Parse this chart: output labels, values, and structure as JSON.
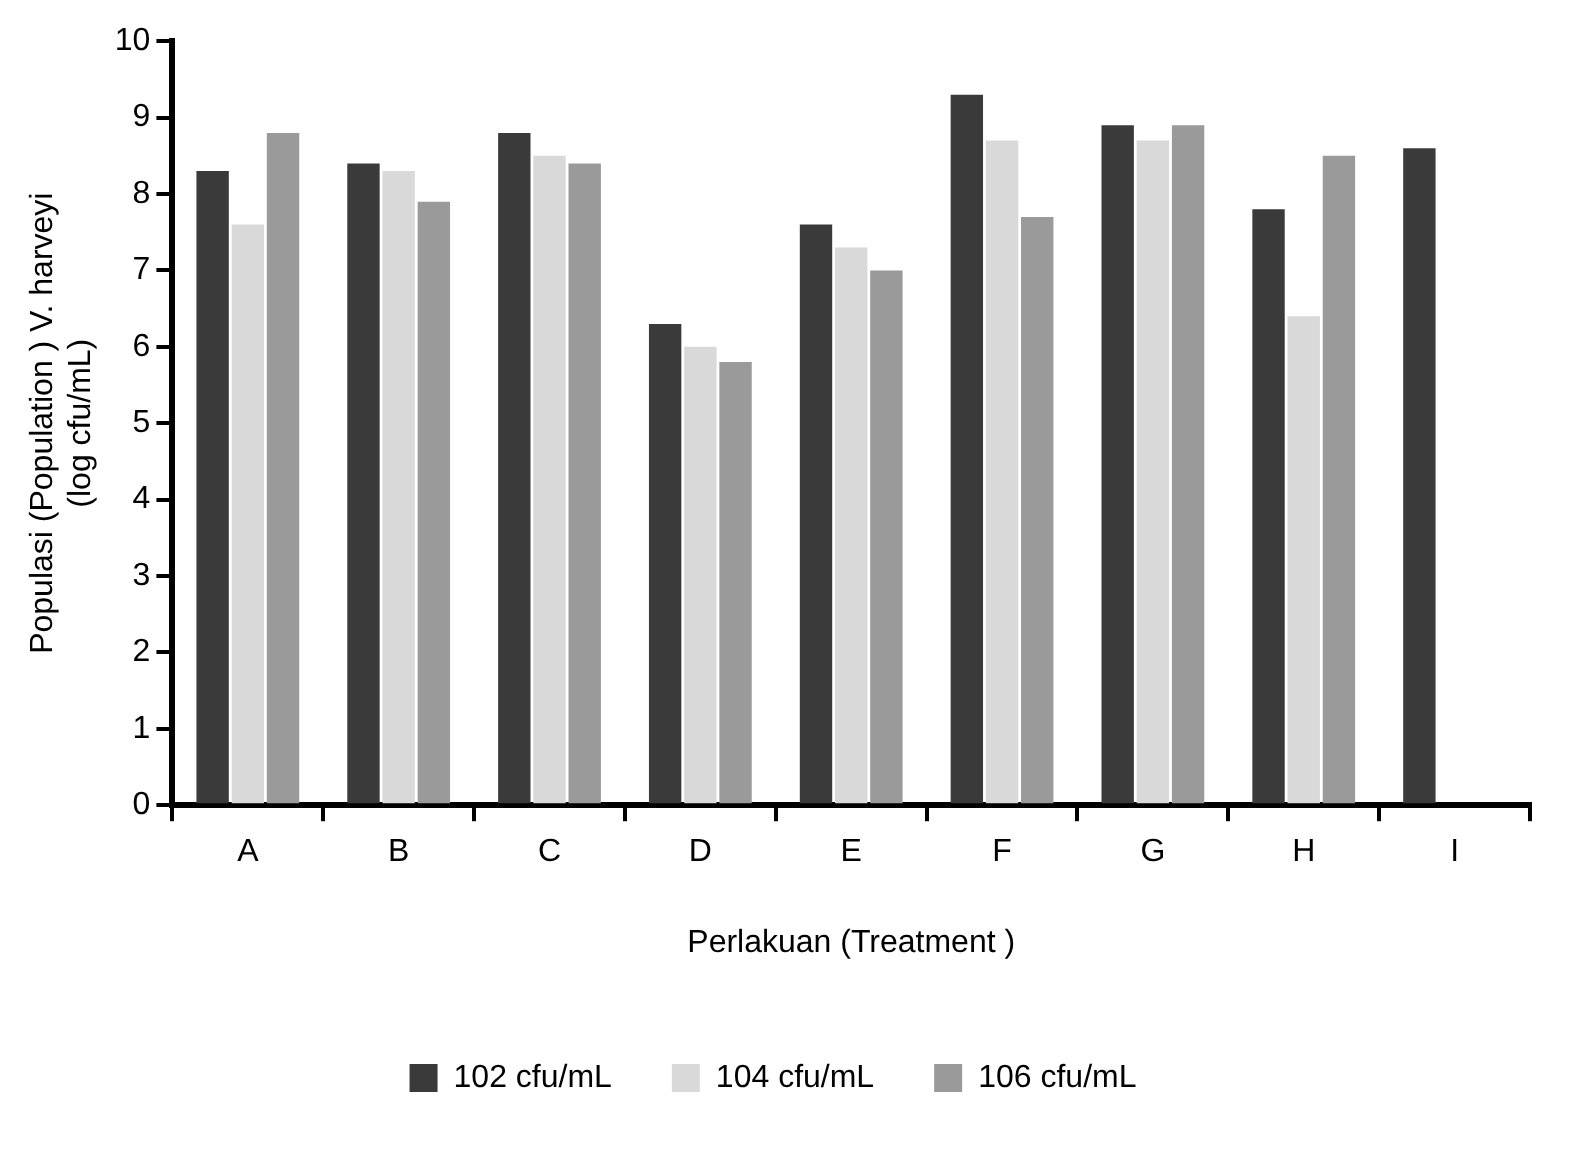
{
  "chart_data": {
    "type": "bar",
    "xlabel": "Perlakuan (Treatment )",
    "ylabel": "Populasi (Population ) V. harveyi (log cfu/mL)",
    "categories": [
      "A",
      "B",
      "C",
      "D",
      "E",
      "F",
      "G",
      "H",
      "I"
    ],
    "series": [
      {
        "name": "102 cfu/mL",
        "color": "#3a3a3a",
        "values": [
          8.3,
          8.4,
          8.8,
          6.3,
          7.6,
          9.3,
          8.9,
          7.8,
          8.6
        ]
      },
      {
        "name": "104 cfu/mL",
        "color": "#d9d9d9",
        "values": [
          7.6,
          8.3,
          8.5,
          6.0,
          7.3,
          8.7,
          8.7,
          6.4,
          null
        ]
      },
      {
        "name": "106 cfu/mL",
        "color": "#9a9a9a",
        "values": [
          8.8,
          7.9,
          8.4,
          5.8,
          7.0,
          7.7,
          8.9,
          8.5,
          null
        ]
      }
    ],
    "ylim": [
      0,
      10
    ],
    "yticks": [
      0,
      1,
      2,
      3,
      4,
      5,
      6,
      7,
      8,
      9,
      10
    ],
    "grid": false,
    "legend": "bottom"
  }
}
